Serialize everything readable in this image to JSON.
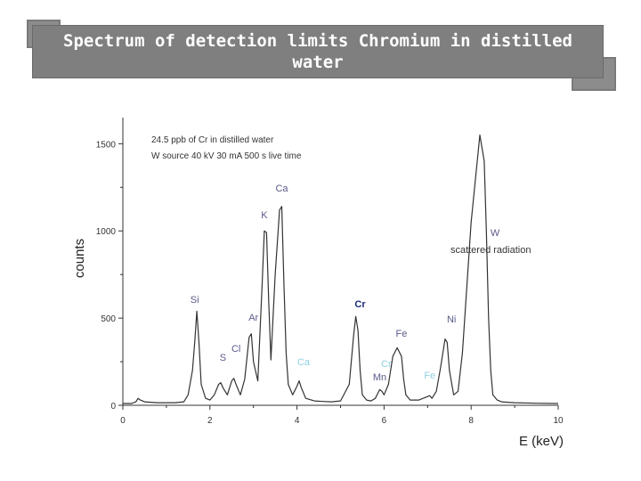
{
  "slide": {
    "title": "Spectrum of detection limits Chromium in distilled water"
  },
  "chart_data": {
    "type": "line",
    "title": "",
    "xlabel": "E (keV)",
    "ylabel": "counts",
    "xlim": [
      0,
      10
    ],
    "ylim": [
      0,
      1650
    ],
    "x_ticks": [
      0,
      2,
      4,
      6,
      8,
      10
    ],
    "y_ticks": [
      0,
      500,
      1000,
      1500
    ],
    "grid": false,
    "notes": [
      "24.5 ppb of Cr in distilled water",
      "W source 40 kV 30 mA 500 s live time"
    ],
    "series": [
      {
        "x": [
          0.0,
          0.2,
          0.3,
          0.35,
          0.4,
          0.5,
          0.6,
          0.8,
          1.0,
          1.2,
          1.4,
          1.5,
          1.6,
          1.65,
          1.7,
          1.75,
          1.8,
          1.9,
          2.0,
          2.1,
          2.2,
          2.25,
          2.3,
          2.4,
          2.5,
          2.55,
          2.6,
          2.7,
          2.8,
          2.9,
          2.95,
          3.0,
          3.1,
          3.2,
          3.25,
          3.3,
          3.35,
          3.4,
          3.5,
          3.6,
          3.65,
          3.7,
          3.75,
          3.8,
          3.9,
          4.0,
          4.05,
          4.1,
          4.2,
          4.4,
          4.6,
          4.8,
          5.0,
          5.2,
          5.3,
          5.35,
          5.4,
          5.45,
          5.5,
          5.6,
          5.7,
          5.8,
          5.9,
          5.95,
          6.0,
          6.1,
          6.2,
          6.3,
          6.4,
          6.45,
          6.5,
          6.6,
          6.8,
          7.0,
          7.05,
          7.1,
          7.2,
          7.3,
          7.4,
          7.45,
          7.5,
          7.6,
          7.7,
          7.8,
          8.0,
          8.2,
          8.3,
          8.35,
          8.4,
          8.45,
          8.5,
          8.6,
          8.7,
          8.8,
          9.0,
          9.5,
          10.0
        ],
        "y": [
          10,
          10,
          20,
          40,
          30,
          20,
          18,
          15,
          15,
          15,
          20,
          60,
          200,
          360,
          540,
          350,
          120,
          40,
          30,
          60,
          120,
          130,
          100,
          60,
          140,
          155,
          120,
          60,
          150,
          390,
          410,
          250,
          140,
          700,
          1000,
          990,
          600,
          260,
          750,
          1120,
          1140,
          700,
          300,
          120,
          60,
          110,
          140,
          100,
          40,
          25,
          22,
          20,
          25,
          120,
          400,
          510,
          430,
          200,
          60,
          30,
          25,
          40,
          90,
          80,
          60,
          120,
          280,
          330,
          280,
          150,
          60,
          30,
          30,
          50,
          55,
          40,
          80,
          220,
          380,
          360,
          200,
          60,
          80,
          300,
          1050,
          1550,
          1400,
          1000,
          500,
          200,
          60,
          30,
          20,
          18,
          15,
          12,
          10
        ]
      }
    ],
    "annotations": [
      {
        "text": "Si",
        "color": "#5a5a8a"
      },
      {
        "text": "S",
        "color": "#5a5a8a"
      },
      {
        "text": "Cl",
        "color": "#5a5a8a"
      },
      {
        "text": "Ar",
        "color": "#5a5a8a"
      },
      {
        "text": "K",
        "color": "#5a5a8a"
      },
      {
        "text": "Ca",
        "color": "#5a5a8a"
      },
      {
        "text": "Ca",
        "color": "#8fd0e0"
      },
      {
        "text": "Cr",
        "color": "#1a2a7a"
      },
      {
        "text": "Mn",
        "color": "#5a5a8a"
      },
      {
        "text": "Cr",
        "color": "#8fd0e0"
      },
      {
        "text": "Fe",
        "color": "#5a5a8a"
      },
      {
        "text": "Fe",
        "color": "#8fd0e0"
      },
      {
        "text": "Ni",
        "color": "#5a5a8a"
      },
      {
        "text": "W",
        "color": "#5a5a8a"
      },
      {
        "text": "scattered radiation",
        "color": "#333333"
      }
    ]
  }
}
